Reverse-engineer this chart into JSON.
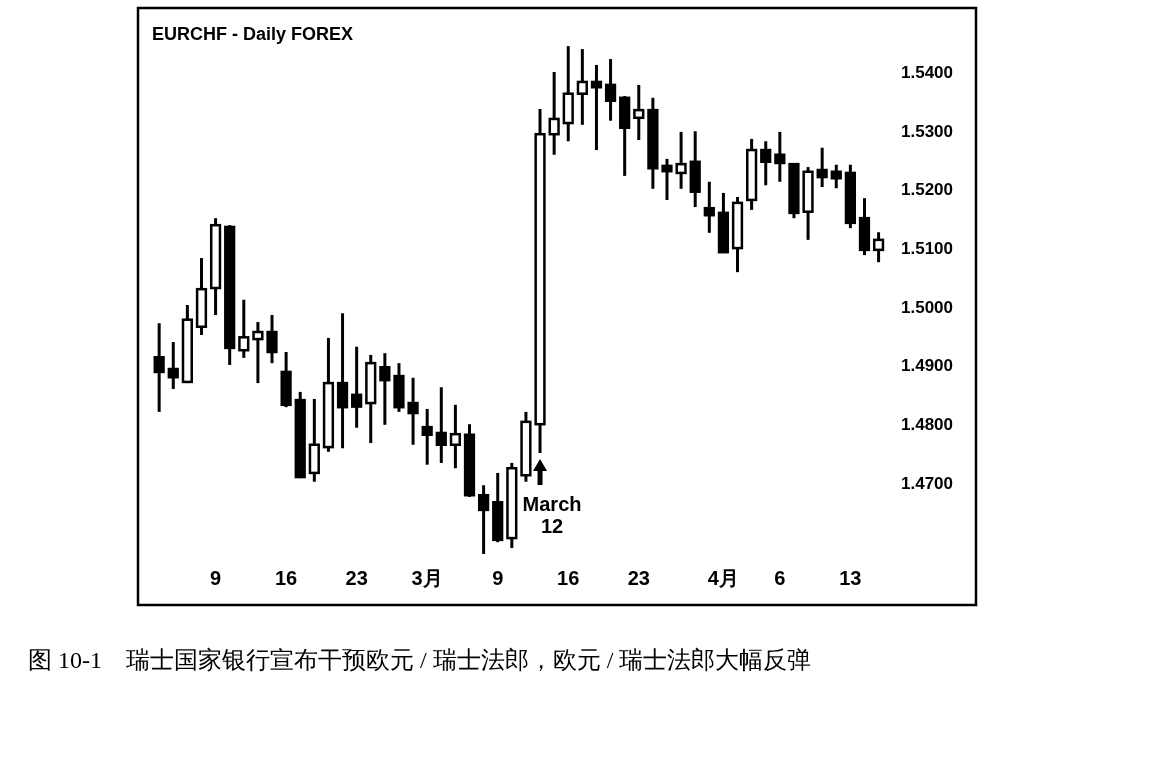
{
  "chart_data": {
    "type": "candlestick",
    "title": "EURCHF - Daily FOREX",
    "annotations": [
      "March\n12",
      "图 10-1　瑞士国家银行宣布干预欧元 / 瑞士法郎，欧元 / 瑞士法郎大幅反弹"
    ],
    "categories": [
      null,
      null,
      null,
      null,
      "9",
      null,
      null,
      null,
      null,
      "16",
      null,
      null,
      null,
      null,
      "23",
      null,
      null,
      null,
      null,
      "3月",
      null,
      null,
      null,
      null,
      "9",
      null,
      null,
      null,
      null,
      "16",
      null,
      null,
      null,
      null,
      "23",
      null,
      null,
      null,
      null,
      null,
      "4月",
      null,
      null,
      null,
      "6",
      null,
      null,
      null,
      null,
      "13",
      null,
      null
    ],
    "ohlc": [
      [
        1.4914,
        1.4972,
        1.4821,
        1.4889
      ],
      [
        1.4894,
        1.494,
        1.486,
        1.488
      ],
      [
        1.4872,
        1.5003,
        1.487,
        1.4978
      ],
      [
        1.4966,
        1.5083,
        1.4952,
        1.503
      ],
      [
        1.5032,
        1.5151,
        1.4986,
        1.5139
      ],
      [
        1.5136,
        1.5139,
        1.4901,
        1.493
      ],
      [
        1.4926,
        1.5012,
        1.4913,
        1.4948
      ],
      [
        1.4945,
        1.4974,
        1.487,
        1.4957
      ],
      [
        1.4957,
        1.4986,
        1.4904,
        1.4923
      ],
      [
        1.4889,
        1.4923,
        1.4829,
        1.4833
      ],
      [
        1.4841,
        1.4855,
        1.4708,
        1.471
      ],
      [
        1.4717,
        1.4843,
        1.4702,
        1.4765
      ],
      [
        1.4761,
        1.4947,
        1.4753,
        1.487
      ],
      [
        1.487,
        1.4989,
        1.4759,
        1.4829
      ],
      [
        1.485,
        1.4932,
        1.4794,
        1.483
      ],
      [
        1.4836,
        1.4918,
        1.4768,
        1.4904
      ],
      [
        1.4897,
        1.4921,
        1.4799,
        1.4875
      ],
      [
        1.4882,
        1.4904,
        1.4821,
        1.4829
      ],
      [
        1.4836,
        1.4879,
        1.4765,
        1.4819
      ],
      [
        1.4795,
        1.4826,
        1.4731,
        1.4782
      ],
      [
        1.4785,
        1.4863,
        1.4734,
        1.4765
      ],
      [
        1.4765,
        1.4833,
        1.4725,
        1.4783
      ],
      [
        1.4782,
        1.48,
        1.4676,
        1.4679
      ],
      [
        1.4679,
        1.4696,
        1.4579,
        1.4654
      ],
      [
        1.4667,
        1.4717,
        1.4599,
        1.4603
      ],
      [
        1.4606,
        1.4734,
        1.4589,
        1.4725
      ],
      [
        1.4713,
        1.4821,
        1.4702,
        1.4804
      ],
      [
        1.48,
        1.5337,
        1.4751,
        1.5294
      ],
      [
        1.5294,
        1.54,
        1.5259,
        1.532
      ],
      [
        1.5313,
        1.5444,
        1.5282,
        1.5363
      ],
      [
        1.5363,
        1.5439,
        1.531,
        1.5383
      ],
      [
        1.5383,
        1.5412,
        1.5267,
        1.5374
      ],
      [
        1.5378,
        1.5422,
        1.5317,
        1.5351
      ],
      [
        1.5356,
        1.5359,
        1.5223,
        1.5305
      ],
      [
        1.5322,
        1.5378,
        1.5284,
        1.5335
      ],
      [
        1.5335,
        1.5356,
        1.5201,
        1.5236
      ],
      [
        1.524,
        1.5252,
        1.5182,
        1.5231
      ],
      [
        1.5228,
        1.5298,
        1.5201,
        1.5243
      ],
      [
        1.5247,
        1.5299,
        1.517,
        1.5196
      ],
      [
        1.5168,
        1.5213,
        1.5126,
        1.5156
      ],
      [
        1.516,
        1.5194,
        1.5093,
        1.5093
      ],
      [
        1.51,
        1.5187,
        1.5059,
        1.5177
      ],
      [
        1.5182,
        1.5286,
        1.5165,
        1.5267
      ],
      [
        1.5267,
        1.5282,
        1.5207,
        1.5247
      ],
      [
        1.5259,
        1.5298,
        1.5213,
        1.5245
      ],
      [
        1.5243,
        1.5245,
        1.5151,
        1.516
      ],
      [
        1.5162,
        1.5238,
        1.5114,
        1.523
      ],
      [
        1.5233,
        1.5271,
        1.5204,
        1.5221
      ],
      [
        1.523,
        1.5242,
        1.5202,
        1.5219
      ],
      [
        1.5228,
        1.5242,
        1.5134,
        1.5143
      ],
      [
        1.5151,
        1.5185,
        1.5088,
        1.5097
      ],
      [
        1.5097,
        1.5127,
        1.5076,
        1.5114
      ]
    ],
    "ylim": [
      1.4492,
      1.5509
    ],
    "yticks": [
      {
        "value": 1.47,
        "label": "1.4700"
      },
      {
        "value": 1.48,
        "label": "1.4800"
      },
      {
        "value": 1.49,
        "label": "1.4900"
      },
      {
        "value": 1.5,
        "label": "1.5000"
      },
      {
        "value": 1.51,
        "label": "1.5100"
      },
      {
        "value": 1.52,
        "label": "1.5200"
      },
      {
        "value": 1.53,
        "label": "1.5300"
      },
      {
        "value": 1.54,
        "label": "1.5400"
      }
    ],
    "grid": false
  }
}
